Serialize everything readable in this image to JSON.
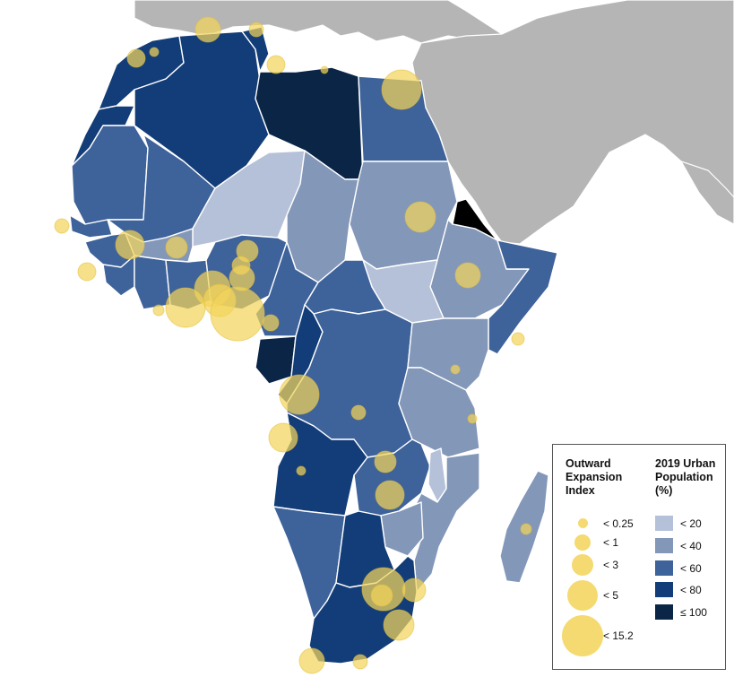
{
  "legend": {
    "expansion_title_1": "Outward",
    "expansion_title_2": "Expansion",
    "expansion_title_3": "Index",
    "urban_title_1": "2019 Urban",
    "urban_title_2": "Population",
    "urban_title_3": "(%)",
    "expansion_items": [
      {
        "label": "< 0.25",
        "max": 0.25
      },
      {
        "label": "< 1",
        "max": 1
      },
      {
        "label": "< 3",
        "max": 3
      },
      {
        "label": "< 5",
        "max": 5
      },
      {
        "label": "< 15.2",
        "max": 15.2
      }
    ],
    "urban_items": [
      {
        "label": "< 20",
        "max": 20,
        "color": "#b4c1d8"
      },
      {
        "label": "< 40",
        "max": 40,
        "color": "#8397b9"
      },
      {
        "label": "< 60",
        "max": 60,
        "color": "#3e629a"
      },
      {
        "label": "< 80",
        "max": 80,
        "color": "#133d78"
      },
      {
        "label": "≤ 100",
        "max": 100,
        "color": "#0a2546"
      }
    ]
  },
  "colors": {
    "background": "#ffffff",
    "other_land": "#b5b5b5",
    "borders": "#ffffff",
    "bubble": "#f2d45c"
  }
}
